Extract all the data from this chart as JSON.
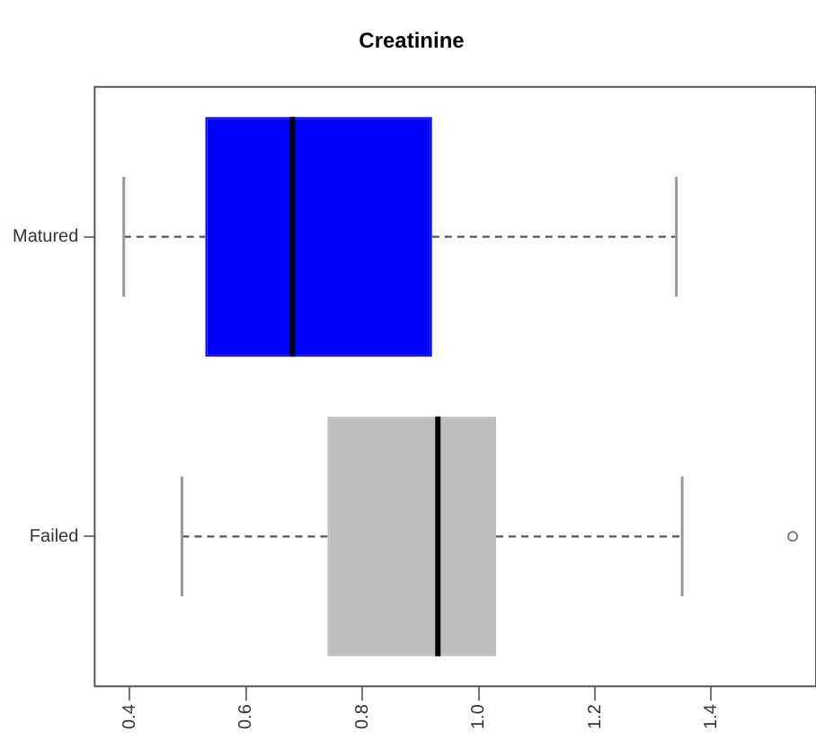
{
  "chart_data": {
    "type": "box",
    "title": "Creatinine",
    "orientation": "horizontal",
    "categories": [
      "Matured",
      "Failed"
    ],
    "colors": [
      "#0000ff",
      "#bebebe"
    ],
    "boxes": [
      {
        "low": 0.39,
        "q1": 0.53,
        "median": 0.68,
        "q3": 0.92,
        "high": 1.34
      },
      {
        "low": 0.49,
        "q1": 0.74,
        "median": 0.93,
        "q3": 1.03,
        "high": 1.35,
        "outliers": [
          1.54
        ]
      }
    ],
    "xlim": [
      0.34,
      1.58
    ],
    "xticks": [
      0.4,
      0.6,
      0.8,
      {
        "value": 1.0,
        "label": "1.0"
      },
      1.2,
      1.4
    ],
    "grid": false
  }
}
